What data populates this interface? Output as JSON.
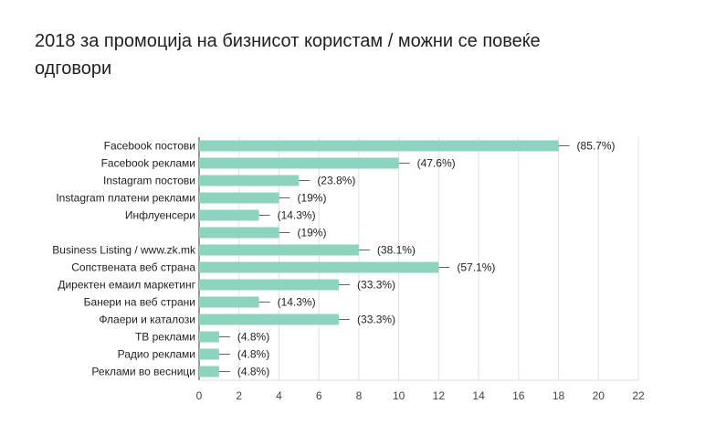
{
  "chart_data": {
    "type": "bar",
    "orientation": "horizontal",
    "title_lines": [
      "2018 за промоција на бизнисот користам / можни се повеќе",
      "одговори"
    ],
    "categories": [
      "Facebook постови",
      "Facebook реклами",
      "Instagram постови",
      "Instagram платени реклами",
      "Инфлуенсери",
      "",
      "Business Listing / www.zk.mk",
      "Сопствената веб страна",
      "Директен емаил маркетинг",
      "Банери на веб страни",
      "Флаери и каталози",
      "ТВ реклами",
      "Радио реклами",
      "Реклами во весници"
    ],
    "values": [
      18,
      10,
      5,
      4,
      3,
      4,
      8,
      12,
      7,
      3,
      7,
      1,
      1,
      1
    ],
    "data_labels": [
      "(85.7%)",
      "(47.6%)",
      "(23.8%)",
      "(19%)",
      "(14.3%)",
      "(19%)",
      "(38.1%)",
      "(57.1%)",
      "(33.3%)",
      "(14.3%)",
      "(33.3%)",
      "(4.8%)",
      "(4.8%)",
      "(4.8%)"
    ],
    "xlim": [
      0,
      22
    ],
    "xticks": [
      0,
      2,
      4,
      6,
      8,
      10,
      12,
      14,
      16,
      18,
      20,
      22
    ],
    "grid": true,
    "legend": "none",
    "colors": {
      "bar": "#8dd3c0",
      "grid": "#e0e0e0",
      "axis": "#333333",
      "whisker": "#666666"
    }
  }
}
